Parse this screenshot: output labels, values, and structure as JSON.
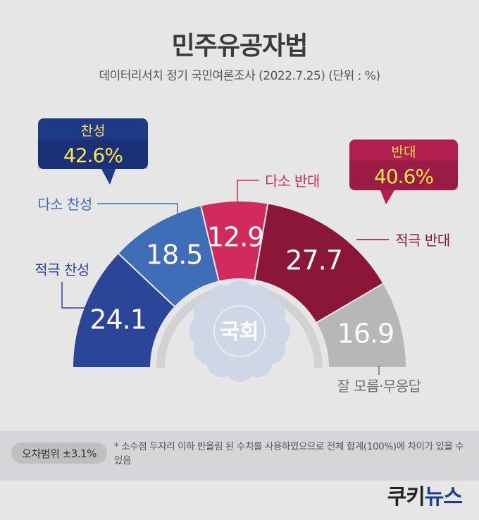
{
  "title": "민주유공자법",
  "subtitle": "데이터리서치 정기 국민여론조사 (2022.7.25)   (단위 : %)",
  "chart_data": {
    "type": "pie",
    "layout": "semicircle",
    "title": "민주유공자법",
    "segments": [
      {
        "label": "적극 찬성",
        "value": 24.1,
        "color": "#2b4699"
      },
      {
        "label": "다소 찬성",
        "value": 18.5,
        "color": "#3f6db8"
      },
      {
        "label": "다소 반대",
        "value": 12.9,
        "color": "#d12a5c"
      },
      {
        "label": "적극 반대",
        "value": 27.7,
        "color": "#8a1638"
      },
      {
        "label": "잘 모름·무응답",
        "value": 16.9,
        "color": "#b7b7ba"
      }
    ],
    "groups": [
      {
        "label": "찬성",
        "value": "42.6%",
        "color": "#1e3a86",
        "text_color": "#ffe34d"
      },
      {
        "label": "반대",
        "value": "40.6%",
        "color": "#b01f4d",
        "text_color": "#ffe34d"
      }
    ],
    "center_emblem": "국회"
  },
  "footer": {
    "margin_of_error": "오차범위 ±3.1%",
    "note": "* 소수점 두자리 이하 반올림 된 수치를 사용하였으므로 전체 합계(100%)에 차이가 있을 수 있음"
  },
  "logo": {
    "part1": "쿠키",
    "part2": "뉴스"
  }
}
